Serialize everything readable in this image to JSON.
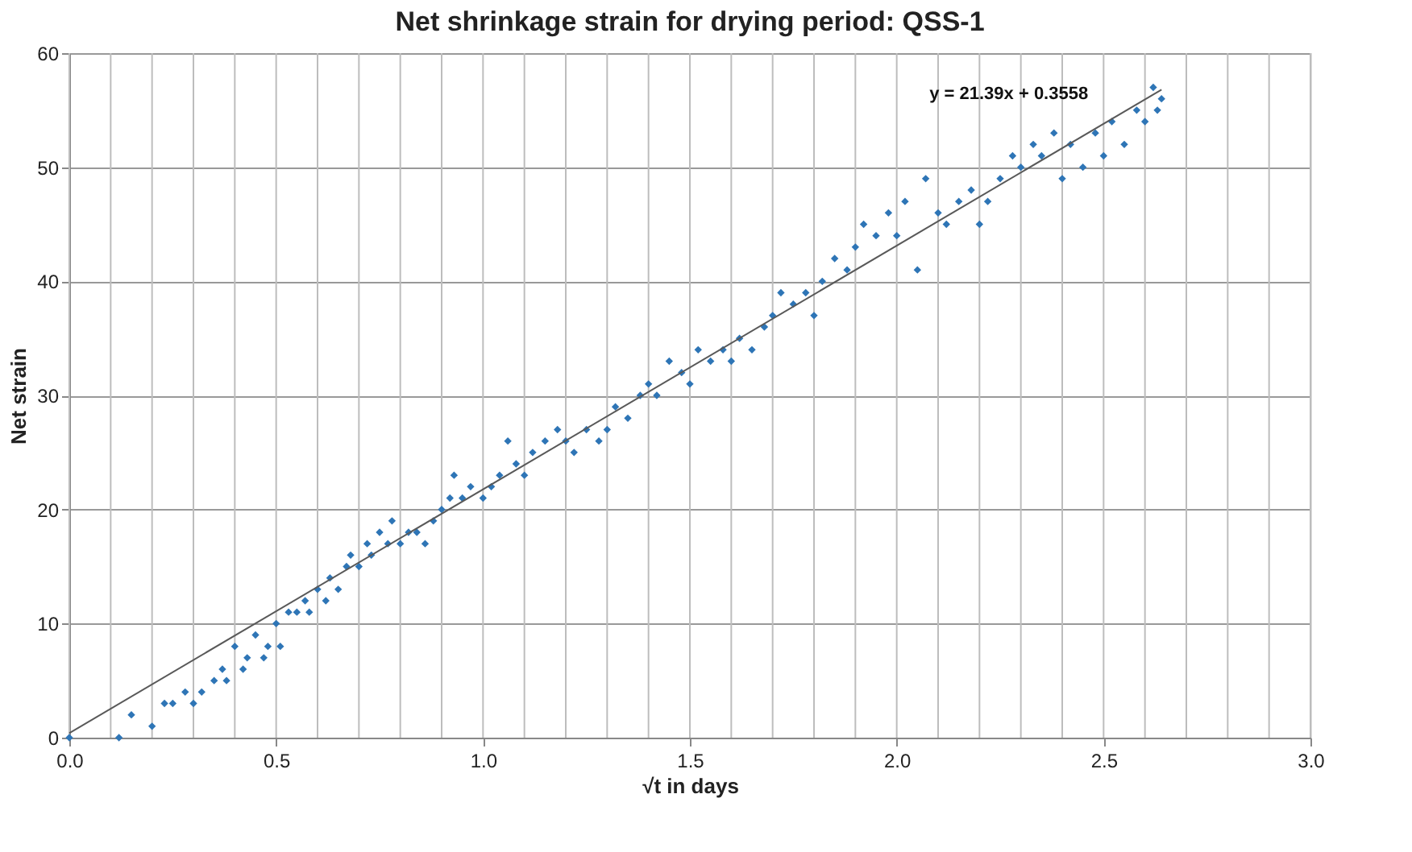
{
  "chart_data": {
    "type": "scatter",
    "title": "Net shrinkage strain for drying period: QSS-1",
    "xlabel": "√t in days",
    "ylabel": "Net strain",
    "xlim": [
      0,
      3
    ],
    "ylim": [
      0,
      60
    ],
    "xticks": [
      {
        "value": 0,
        "label": "0.0"
      },
      {
        "value": 0.1,
        "label": null
      },
      {
        "value": 0.2,
        "label": null
      },
      {
        "value": 0.3,
        "label": null
      },
      {
        "value": 0.4,
        "label": null
      },
      0.5,
      {
        "value": 0.6,
        "label": null
      },
      {
        "value": 0.7,
        "label": null
      },
      {
        "value": 0.8,
        "label": null
      },
      {
        "value": 0.9,
        "label": null
      },
      {
        "value": 1,
        "label": "1.0"
      },
      {
        "value": 1.1,
        "label": null
      },
      {
        "value": 1.2,
        "label": null
      },
      {
        "value": 1.3,
        "label": null
      },
      {
        "value": 1.4,
        "label": null
      },
      1.5,
      {
        "value": 1.6,
        "label": null
      },
      {
        "value": 1.7,
        "label": null
      },
      {
        "value": 1.8,
        "label": null
      },
      {
        "value": 1.9,
        "label": null
      },
      {
        "value": 2,
        "label": "2.0"
      },
      {
        "value": 2.1,
        "label": null
      },
      {
        "value": 2.2,
        "label": null
      },
      {
        "value": 2.3,
        "label": null
      },
      {
        "value": 2.4,
        "label": null
      },
      2.5,
      {
        "value": 2.6,
        "label": null
      },
      {
        "value": 2.7,
        "label": null
      },
      {
        "value": 2.8,
        "label": null
      },
      {
        "value": 2.9,
        "label": null
      },
      {
        "value": 3,
        "label": "3.0"
      }
    ],
    "yticks": [
      0,
      10,
      20,
      30,
      40,
      50,
      60
    ],
    "grid": true,
    "annotations": [
      "y = 21.39x + 0.3558"
    ],
    "series": [
      {
        "marker": "diamond",
        "color": "#2e75b6",
        "x": [
          0,
          0.12,
          0.15,
          0.2,
          0.23,
          0.25,
          0.28,
          0.3,
          0.32,
          0.35,
          0.37,
          0.38,
          0.4,
          0.42,
          0.43,
          0.45,
          0.47,
          0.48,
          0.5,
          0.51,
          0.53,
          0.55,
          0.57,
          0.58,
          0.6,
          0.62,
          0.63,
          0.65,
          0.67,
          0.68,
          0.7,
          0.72,
          0.73,
          0.75,
          0.77,
          0.78,
          0.8,
          0.82,
          0.84,
          0.86,
          0.88,
          0.9,
          0.92,
          0.93,
          0.95,
          0.97,
          1.0,
          1.02,
          1.04,
          1.06,
          1.08,
          1.1,
          1.12,
          1.15,
          1.18,
          1.2,
          1.22,
          1.25,
          1.28,
          1.3,
          1.32,
          1.35,
          1.38,
          1.4,
          1.42,
          1.45,
          1.48,
          1.5,
          1.52,
          1.55,
          1.58,
          1.6,
          1.62,
          1.65,
          1.68,
          1.7,
          1.72,
          1.75,
          1.78,
          1.8,
          1.82,
          1.85,
          1.88,
          1.9,
          1.92,
          1.95,
          1.98,
          2.0,
          2.02,
          2.05,
          2.07,
          2.1,
          2.12,
          2.15,
          2.18,
          2.2,
          2.22,
          2.25,
          2.28,
          2.3,
          2.33,
          2.35,
          2.38,
          2.4,
          2.42,
          2.45,
          2.48,
          2.5,
          2.52,
          2.55,
          2.58,
          2.6,
          2.62,
          2.63,
          2.64
        ],
        "values": [
          0,
          0,
          2,
          1,
          3,
          3,
          4,
          3,
          4,
          5,
          6,
          5,
          8,
          6,
          7,
          9,
          7,
          8,
          10,
          8,
          11,
          11,
          12,
          11,
          13,
          12,
          14,
          13,
          15,
          16,
          15,
          17,
          16,
          18,
          17,
          19,
          17,
          18,
          18,
          17,
          19,
          20,
          21,
          23,
          21,
          22,
          21,
          22,
          23,
          26,
          24,
          23,
          25,
          26,
          27,
          26,
          25,
          27,
          26,
          27,
          29,
          28,
          30,
          31,
          30,
          33,
          32,
          31,
          34,
          33,
          34,
          33,
          35,
          34,
          36,
          37,
          39,
          38,
          39,
          37,
          40,
          42,
          41,
          43,
          45,
          44,
          46,
          44,
          47,
          41,
          49,
          46,
          45,
          47,
          48,
          45,
          47,
          49,
          51,
          50,
          52,
          51,
          53,
          49,
          52,
          50,
          53,
          51,
          54,
          52,
          55,
          54,
          57,
          55,
          56
        ]
      },
      {
        "type": "line",
        "color": "#595959",
        "x": [
          0,
          2.64
        ],
        "values": [
          0.4,
          56.8
        ]
      }
    ]
  }
}
